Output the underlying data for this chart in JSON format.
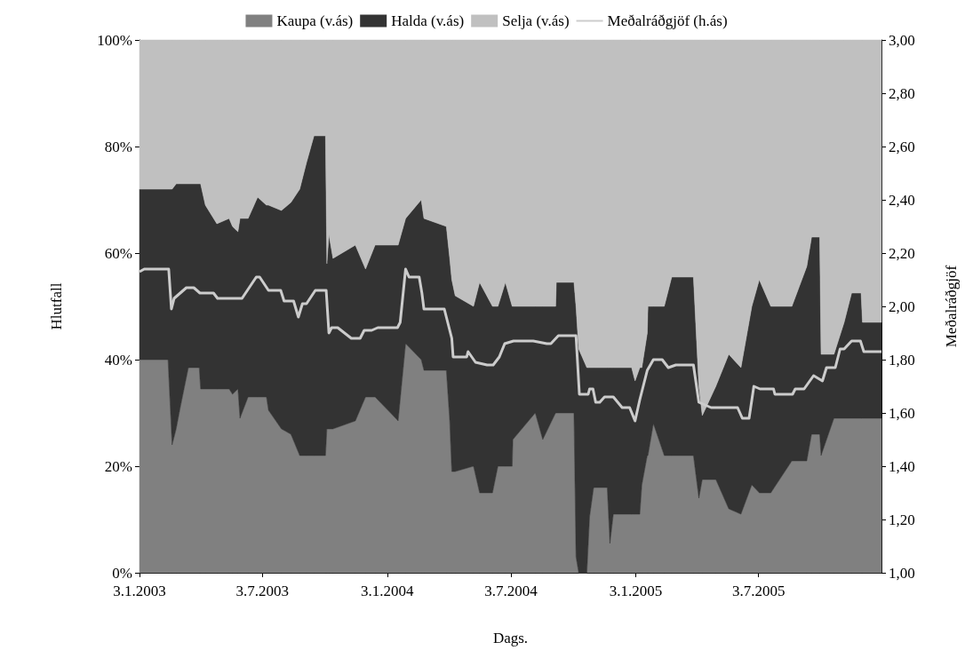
{
  "chart_data": {
    "type": "area",
    "stacked": true,
    "xlabel": "Dags.",
    "ylabel": "Hlutfall",
    "y2label": "Meðalráðgjöf",
    "legend": "top",
    "x": [
      "2003-01-03",
      "2003-02-14",
      "2003-02-20",
      "2003-02-26",
      "2003-03-04",
      "2003-03-16",
      "2003-04-01",
      "2003-04-03",
      "2003-04-10",
      "2003-04-27",
      "2003-05-15",
      "2003-05-20",
      "2003-05-28",
      "2003-05-31",
      "2003-06-12",
      "2003-06-26",
      "2003-07-09",
      "2003-07-12",
      "2003-07-31",
      "2003-08-14",
      "2003-08-27",
      "2003-09-06",
      "2003-09-17",
      "2003-10-04",
      "2003-10-06",
      "2003-10-09",
      "2003-10-15",
      "2003-11-17",
      "2003-12-02",
      "2003-12-16",
      "2004-01-19",
      "2004-01-30",
      "2004-02-22",
      "2004-02-26",
      "2004-03-30",
      "2004-04-04",
      "2004-04-07",
      "2004-04-12",
      "2004-05-09",
      "2004-05-18",
      "2004-06-06",
      "2004-06-14",
      "2004-06-25",
      "2004-07-05",
      "2004-07-06",
      "2004-08-08",
      "2004-08-19",
      "2004-09-07",
      "2004-09-08",
      "2004-10-04",
      "2004-10-07",
      "2004-10-11",
      "2004-10-23",
      "2004-10-27",
      "2004-11-02",
      "2004-11-22",
      "2004-11-26",
      "2004-12-01",
      "2004-12-28",
      "2005-01-02",
      "2005-01-09",
      "2005-01-12",
      "2005-01-20",
      "2005-01-21",
      "2005-01-29",
      "2005-02-14",
      "2005-02-25",
      "2005-03-29",
      "2005-04-06",
      "2005-04-11",
      "2005-05-01",
      "2005-05-20",
      "2005-06-07",
      "2005-06-23",
      "2005-07-04",
      "2005-07-21",
      "2005-08-21",
      "2005-09-12",
      "2005-09-19",
      "2005-10-01",
      "2005-10-03",
      "2005-10-22",
      "2005-11-06",
      "2005-11-17",
      "2005-12-01",
      "2005-12-03",
      "2005-12-31"
    ],
    "series": [
      {
        "name": "Kaupa (v.ás)",
        "color": "#808080",
        "values": [
          40,
          40,
          24,
          27,
          31,
          38.5,
          38.5,
          34.5,
          34.5,
          34.5,
          34.5,
          33.5,
          34.5,
          29,
          33,
          33,
          33,
          30.5,
          27,
          26,
          22,
          22,
          22,
          22,
          27,
          27,
          27,
          28.5,
          33,
          33,
          28.5,
          43,
          40,
          38,
          38,
          28.5,
          19,
          19,
          20,
          15,
          15,
          20,
          20,
          20,
          25,
          30,
          25,
          30,
          30,
          30,
          3,
          0,
          0,
          10.5,
          16,
          16,
          5.5,
          11,
          11,
          11,
          11,
          16.5,
          22,
          22,
          28,
          22,
          22,
          22,
          14,
          17.5,
          17.5,
          12,
          11,
          16.5,
          15,
          15,
          21,
          21,
          26,
          26,
          22,
          29,
          29,
          29,
          29,
          29,
          29
        ]
      },
      {
        "name": "Halda (v.ás)",
        "color": "#333333",
        "values": [
          32,
          32,
          48,
          46,
          42,
          34.5,
          34.5,
          38.5,
          34.5,
          31,
          32,
          31.5,
          29.5,
          37.5,
          33.5,
          37.5,
          36,
          38.5,
          41,
          43.5,
          50,
          55,
          60,
          60,
          31,
          36.5,
          32,
          33,
          24,
          28.5,
          33,
          23.5,
          30,
          28.5,
          27,
          30.5,
          36,
          33,
          30,
          39.5,
          35,
          30,
          34.5,
          30,
          25,
          20,
          25,
          20,
          24.5,
          24.5,
          47,
          42,
          38.5,
          28,
          22.5,
          22.5,
          33,
          27.5,
          27.5,
          25,
          27.5,
          22,
          23,
          28,
          22,
          28,
          33.5,
          33.5,
          21,
          12,
          17.5,
          29,
          27.5,
          33.5,
          40,
          35,
          29,
          36.5,
          37,
          37,
          19,
          12,
          18,
          23.5,
          23.5,
          18,
          18
        ]
      },
      {
        "name": "Selja (v.ás)",
        "color": "#c0c0c0",
        "values": [
          28,
          28,
          28,
          27,
          27,
          27,
          27,
          27,
          31,
          34.5,
          33.5,
          35,
          36,
          33.5,
          33.5,
          29.5,
          31,
          31,
          32,
          30.5,
          28,
          23,
          18,
          18,
          42,
          36.5,
          41,
          38.5,
          43,
          38.5,
          38.5,
          33.5,
          30,
          33.5,
          35,
          41,
          45,
          48,
          50,
          45.5,
          50,
          50,
          45.5,
          50,
          50,
          50,
          50,
          50,
          45.5,
          45.5,
          50,
          58,
          61.5,
          61.5,
          61.5,
          61.5,
          61.5,
          61.5,
          61.5,
          64,
          61.5,
          61.5,
          55,
          50,
          50,
          50,
          44.5,
          44.5,
          65,
          70.5,
          65,
          59,
          61.5,
          50,
          45,
          50,
          50,
          42.5,
          37,
          37,
          59,
          59,
          53,
          47.5,
          47.5,
          53,
          53
        ]
      },
      {
        "name": "Meðalráðgjöf (h.ás)",
        "type": "line",
        "axis": "y2",
        "color": "#cccccc",
        "x": [
          "2003-01-03",
          "2003-01-10",
          "2003-02-15",
          "2003-02-19",
          "2003-02-23",
          "2003-03-13",
          "2003-03-24",
          "2003-04-02",
          "2003-04-22",
          "2003-04-28",
          "2003-05-24",
          "2003-06-03",
          "2003-06-24",
          "2003-06-29",
          "2003-07-12",
          "2003-07-30",
          "2003-08-04",
          "2003-08-18",
          "2003-08-25",
          "2003-08-31",
          "2003-09-06",
          "2003-09-19",
          "2003-10-05",
          "2003-10-09",
          "2003-10-13",
          "2003-10-22",
          "2003-11-11",
          "2003-11-24",
          "2003-11-30",
          "2003-12-11",
          "2003-12-20",
          "2004-01-18",
          "2004-01-22",
          "2004-01-30",
          "2004-02-04",
          "2004-02-19",
          "2004-02-23",
          "2004-02-26",
          "2004-03-27",
          "2004-04-07",
          "2004-04-09",
          "2004-04-29",
          "2004-05-01",
          "2004-05-12",
          "2004-05-29",
          "2004-06-07",
          "2004-06-16",
          "2004-06-24",
          "2004-07-07",
          "2004-08-05",
          "2004-08-25",
          "2004-08-31",
          "2004-09-11",
          "2004-10-07",
          "2004-10-12",
          "2004-10-25",
          "2004-10-27",
          "2004-11-01",
          "2004-11-05",
          "2004-11-11",
          "2004-11-18",
          "2004-12-01",
          "2004-12-14",
          "2004-12-25",
          "2005-01-02",
          "2005-01-09",
          "2005-01-20",
          "2005-01-29",
          "2005-02-11",
          "2005-02-20",
          "2005-03-03",
          "2005-03-29",
          "2005-04-06",
          "2005-04-24",
          "2005-06-02",
          "2005-06-09",
          "2005-06-19",
          "2005-06-26",
          "2005-07-05",
          "2005-07-25",
          "2005-07-27",
          "2005-08-22",
          "2005-08-26",
          "2005-09-08",
          "2005-09-22",
          "2005-10-05",
          "2005-10-11",
          "2005-10-24",
          "2005-10-31",
          "2005-11-06",
          "2005-11-17",
          "2005-11-30",
          "2005-12-05",
          "2005-12-31"
        ],
        "values": [
          2.13,
          2.14,
          2.14,
          1.99,
          2.03,
          2.07,
          2.07,
          2.05,
          2.05,
          2.03,
          2.03,
          2.03,
          2.11,
          2.11,
          2.06,
          2.06,
          2.02,
          2.02,
          1.96,
          2.01,
          2.01,
          2.06,
          2.06,
          1.9,
          1.92,
          1.92,
          1.88,
          1.88,
          1.91,
          1.91,
          1.92,
          1.92,
          1.94,
          2.14,
          2.11,
          2.11,
          2.05,
          1.99,
          1.99,
          1.88,
          1.81,
          1.81,
          1.83,
          1.79,
          1.78,
          1.78,
          1.81,
          1.86,
          1.87,
          1.87,
          1.86,
          1.86,
          1.89,
          1.89,
          1.67,
          1.67,
          1.69,
          1.69,
          1.64,
          1.64,
          1.66,
          1.66,
          1.62,
          1.62,
          1.57,
          1.65,
          1.76,
          1.8,
          1.8,
          1.77,
          1.78,
          1.78,
          1.64,
          1.62,
          1.62,
          1.58,
          1.58,
          1.7,
          1.69,
          1.69,
          1.67,
          1.67,
          1.69,
          1.69,
          1.74,
          1.72,
          1.77,
          1.77,
          1.84,
          1.84,
          1.87,
          1.87,
          1.83,
          1.83
        ]
      }
    ],
    "xlim": [
      "2003-01-03",
      "2005-12-31"
    ],
    "xticks": [
      {
        "value": "2003-01-03",
        "label": "3.1.2003"
      },
      {
        "value": "2003-07-03",
        "label": "3.7.2003"
      },
      {
        "value": "2004-01-03",
        "label": "3.1.2004"
      },
      {
        "value": "2004-07-03",
        "label": "3.7.2004"
      },
      {
        "value": "2005-01-03",
        "label": "3.1.2005"
      },
      {
        "value": "2005-07-03",
        "label": "3.7.2005"
      }
    ],
    "ylim": [
      0,
      100
    ],
    "yticks": [
      {
        "value": 0,
        "label": "0%"
      },
      {
        "value": 20,
        "label": "20%"
      },
      {
        "value": 40,
        "label": "40%"
      },
      {
        "value": 60,
        "label": "60%"
      },
      {
        "value": 80,
        "label": "80%"
      },
      {
        "value": 100,
        "label": "100%"
      }
    ],
    "y2lim": [
      1,
      3
    ],
    "y2ticks": [
      {
        "value": 1,
        "label": "1,00"
      },
      {
        "value": 1.2,
        "label": "1,20"
      },
      {
        "value": 1.4,
        "label": "1,40"
      },
      {
        "value": 1.6,
        "label": "1,60"
      },
      {
        "value": 1.8,
        "label": "1,80"
      },
      {
        "value": 2,
        "label": "2,00"
      },
      {
        "value": 2.2,
        "label": "2,20"
      },
      {
        "value": 2.4,
        "label": "2,40"
      },
      {
        "value": 2.6,
        "label": "2,60"
      },
      {
        "value": 2.8,
        "label": "2,80"
      },
      {
        "value": 3,
        "label": "3,00"
      }
    ]
  }
}
